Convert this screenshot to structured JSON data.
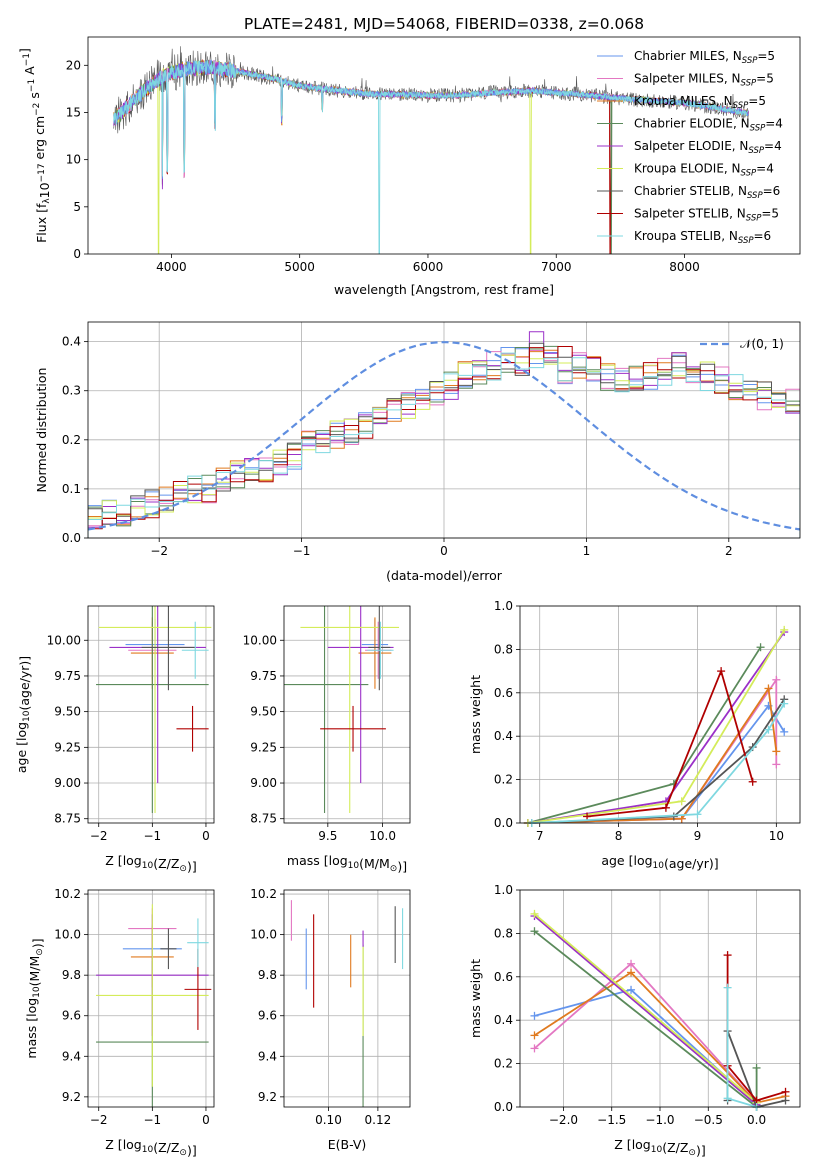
{
  "figure": {
    "title": "PLATE=2481, MJD=54068, FIBERID=0338, z=0.068"
  },
  "series": [
    {
      "key": "chabrier_miles",
      "label": "Chabrier MILES, N_SSP=5",
      "label_main": "Chabrier MILES, N",
      "label_sub": "SSP",
      "label_tail": "=5",
      "color": "#6495ed"
    },
    {
      "key": "salpeter_miles",
      "label": "Salpeter MILES, N_SSP=5",
      "label_main": "Salpeter MILES, N",
      "label_sub": "SSP",
      "label_tail": "=5",
      "color": "#e377c2"
    },
    {
      "key": "kroupa_miles",
      "label": "Kroupa MILES, N_SSP=5",
      "label_main": "Kroupa MILES, N",
      "label_sub": "SSP",
      "label_tail": "=5",
      "color": "#e07a1f"
    },
    {
      "key": "chabrier_elodie",
      "label": "Chabrier ELODIE, N_SSP=4",
      "label_main": "Chabrier ELODIE, N",
      "label_sub": "SSP",
      "label_tail": "=4",
      "color": "#5b8a5b"
    },
    {
      "key": "salpeter_elodie",
      "label": "Salpeter ELODIE, N_SSP=4",
      "label_main": "Salpeter ELODIE, N",
      "label_sub": "SSP",
      "label_tail": "=4",
      "color": "#9b30c8"
    },
    {
      "key": "kroupa_elodie",
      "label": "Kroupa ELODIE, N_SSP=4",
      "label_main": "Kroupa ELODIE, N",
      "label_sub": "SSP",
      "label_tail": "=4",
      "color": "#d4ec5a"
    },
    {
      "key": "chabrier_stelib",
      "label": "Chabrier STELIB, N_SSP=6",
      "label_main": "Chabrier STELIB, N",
      "label_sub": "SSP",
      "label_tail": "=6",
      "color": "#555555"
    },
    {
      "key": "salpeter_stelib",
      "label": "Salpeter STELIB, N_SSP=5",
      "label_main": "Salpeter STELIB, N",
      "label_sub": "SSP",
      "label_tail": "=5",
      "color": "#b00000"
    },
    {
      "key": "kroupa_stelib",
      "label": "Kroupa STELIB, N_SSP=6",
      "label_main": "Kroupa STELIB, N",
      "label_sub": "SSP",
      "label_tail": "=6",
      "color": "#7fd8e0"
    }
  ],
  "chart_data": [
    {
      "id": "spectrum",
      "type": "line",
      "xlabel": "wavelength [Angstrom, rest frame]",
      "ylabel": "Flux [f_λ 10^-17 erg cm^-2 s^-1 A^-1]",
      "xlim": [
        3350,
        8900
      ],
      "ylim": [
        0,
        23
      ],
      "xticks": [
        4000,
        5000,
        6000,
        7000,
        8000
      ],
      "yticks": [
        0,
        5,
        10,
        15,
        20
      ],
      "legend": "upper right",
      "continuum_x": [
        3550,
        3800,
        3950,
        4100,
        4300,
        4500,
        4800,
        5000,
        5200,
        5500,
        5800,
        6000,
        6200,
        6500,
        6800,
        7000,
        7200,
        7500,
        7800,
        8000,
        8200,
        8500
      ],
      "continuum_y": [
        14.2,
        17.5,
        19.0,
        19.6,
        19.8,
        19.4,
        18.6,
        17.8,
        17.5,
        17.0,
        16.9,
        16.8,
        16.8,
        17.1,
        17.3,
        17.1,
        16.9,
        16.5,
        16.2,
        16.0,
        15.6,
        14.9
      ],
      "drops": [
        [
          3900,
          0
        ],
        [
          3930,
          6.8
        ],
        [
          3968,
          8.5
        ],
        [
          4100,
          8.0
        ],
        [
          4340,
          13.0
        ],
        [
          4861,
          13.5
        ],
        [
          5175,
          15.0
        ],
        [
          5620,
          0
        ],
        [
          6800,
          0
        ],
        [
          7420,
          0
        ],
        [
          7430,
          0
        ]
      ]
    },
    {
      "id": "residuals",
      "type": "histogram",
      "xlabel": "(data-model)/error",
      "ylabel": "Normed distribution",
      "xlim": [
        -2.5,
        2.5
      ],
      "ylim": [
        0,
        0.44
      ],
      "xticks": [
        -2,
        -1,
        0,
        1,
        2
      ],
      "yticks": [
        0.0,
        0.1,
        0.2,
        0.3,
        0.4
      ],
      "legend": "upper right",
      "gaussian_label": "𝒩(0, 1)",
      "gaussian_color": "#5f8ee0",
      "bin_width": 0.1,
      "bin_start": -2.5,
      "base_profile": [
        0.04,
        0.05,
        0.05,
        0.06,
        0.07,
        0.08,
        0.09,
        0.1,
        0.1,
        0.12,
        0.13,
        0.14,
        0.14,
        0.15,
        0.17,
        0.19,
        0.2,
        0.21,
        0.22,
        0.23,
        0.25,
        0.26,
        0.27,
        0.28,
        0.3,
        0.31,
        0.33,
        0.34,
        0.35,
        0.36,
        0.36,
        0.37,
        0.37,
        0.34,
        0.35,
        0.34,
        0.33,
        0.32,
        0.32,
        0.33,
        0.34,
        0.35,
        0.34,
        0.33,
        0.32,
        0.31,
        0.3,
        0.29,
        0.28,
        0.28,
        0.27,
        0.26,
        0.24,
        0.23,
        0.22,
        0.21,
        0.2,
        0.19,
        0.18,
        0.17,
        0.17,
        0.16,
        0.15,
        0.14,
        0.13,
        0.12,
        0.11,
        0.1,
        0.09,
        0.08,
        0.07,
        0.06,
        0.06,
        0.05,
        0.05,
        0.05,
        0.04,
        0.04,
        0.04,
        0.04,
        0.03,
        0.03,
        0.03,
        0.03,
        0.03,
        0.03,
        0.02,
        0.02,
        0.02,
        0.02,
        0.02,
        0.02,
        0.02,
        0.02,
        0.02,
        0.02,
        0.02,
        0.02,
        0.02,
        0.02
      ]
    },
    {
      "id": "age_vs_Z",
      "type": "scatter",
      "xlabel": "Z [log10(Z/Z☉)]",
      "ylabel": "age [log10(age/yr)]",
      "xlim": [
        -2.2,
        0.15
      ],
      "ylim": [
        8.72,
        10.24
      ],
      "xticks": [
        -2,
        -1,
        0
      ],
      "yticks": [
        8.75,
        9.0,
        9.25,
        9.5,
        9.75,
        10.0
      ],
      "points": [
        {
          "s": 0,
          "x": -0.95,
          "y": 9.97,
          "xerr": 0.55,
          "yerr": 0.18
        },
        {
          "s": 1,
          "x": -1.0,
          "y": 9.93,
          "xerr": 0.45,
          "yerr": 0.2
        },
        {
          "s": 2,
          "x": -1.0,
          "y": 9.91,
          "xerr": 0.4,
          "yerr": 0.25
        },
        {
          "s": 3,
          "x": -1.0,
          "y": 9.69,
          "xerr": 1.05,
          "yerr": 0.9
        },
        {
          "s": 4,
          "x": -0.9,
          "y": 9.95,
          "xerr": 0.9,
          "yerr": 0.95
        },
        {
          "s": 5,
          "x": -0.95,
          "y": 10.09,
          "xerr": 1.05,
          "yerr": 1.3
        },
        {
          "s": 6,
          "x": -0.7,
          "y": 9.95,
          "xerr": 0.5,
          "yerr": 0.3
        },
        {
          "s": 7,
          "x": -0.25,
          "y": 9.38,
          "xerr": 0.3,
          "yerr": 0.16
        },
        {
          "s": 8,
          "x": -0.2,
          "y": 9.93,
          "xerr": 0.25,
          "yerr": 0.2
        }
      ]
    },
    {
      "id": "age_vs_mass",
      "type": "scatter",
      "xlabel": "mass [log10(M/M☉)]",
      "ylabel": "",
      "xlim": [
        9.1,
        10.25
      ],
      "ylim": [
        8.72,
        10.24
      ],
      "xticks": [
        9.5,
        10.0
      ],
      "yticks": [
        8.75,
        9.0,
        9.25,
        9.5,
        9.75,
        10.0
      ],
      "points": [
        {
          "s": 0,
          "x": 9.93,
          "y": 9.97,
          "xerr": 0.12,
          "yerr": 0.18
        },
        {
          "s": 1,
          "x": 9.96,
          "y": 9.93,
          "xerr": 0.12,
          "yerr": 0.2
        },
        {
          "s": 2,
          "x": 9.93,
          "y": 9.91,
          "xerr": 0.15,
          "yerr": 0.25
        },
        {
          "s": 3,
          "x": 9.47,
          "y": 9.69,
          "xerr": 0.4,
          "yerr": 0.9
        },
        {
          "s": 4,
          "x": 9.8,
          "y": 9.95,
          "xerr": 0.3,
          "yerr": 0.95
        },
        {
          "s": 5,
          "x": 9.7,
          "y": 10.09,
          "xerr": 0.45,
          "yerr": 1.3
        },
        {
          "s": 6,
          "x": 9.97,
          "y": 9.95,
          "xerr": 0.1,
          "yerr": 0.3
        },
        {
          "s": 7,
          "x": 9.73,
          "y": 9.38,
          "xerr": 0.3,
          "yerr": 0.16
        },
        {
          "s": 8,
          "x": 9.98,
          "y": 9.93,
          "xerr": 0.12,
          "yerr": 0.2
        }
      ]
    },
    {
      "id": "weight_vs_age",
      "type": "line",
      "xlabel": "age [log10(age/yr)]",
      "ylabel": "mass weight",
      "xlim": [
        6.75,
        10.3
      ],
      "ylim": [
        0,
        1
      ],
      "xticks": [
        7,
        8,
        9,
        10
      ],
      "yticks": [
        0.0,
        0.2,
        0.4,
        0.6,
        0.8,
        1.0
      ],
      "series_points": [
        {
          "s": 0,
          "x": [
            6.85,
            8.8,
            9.9,
            10.1
          ],
          "y": [
            0.0,
            0.02,
            0.54,
            0.42
          ]
        },
        {
          "s": 1,
          "x": [
            6.85,
            8.8,
            10.0,
            10.0
          ],
          "y": [
            0.0,
            0.02,
            0.66,
            0.27
          ]
        },
        {
          "s": 2,
          "x": [
            6.85,
            8.8,
            9.9,
            10.0
          ],
          "y": [
            0.0,
            0.02,
            0.62,
            0.33
          ]
        },
        {
          "s": 3,
          "x": [
            6.85,
            8.7,
            9.8
          ],
          "y": [
            0.0,
            0.18,
            0.81
          ]
        },
        {
          "s": 4,
          "x": [
            6.85,
            8.6,
            10.1
          ],
          "y": [
            0.0,
            0.1,
            0.88
          ]
        },
        {
          "s": 5,
          "x": [
            6.85,
            8.8,
            10.1
          ],
          "y": [
            0.0,
            0.1,
            0.89
          ]
        },
        {
          "s": 6,
          "x": [
            6.9,
            8.7,
            9.7,
            10.1
          ],
          "y": [
            0.0,
            0.03,
            0.35,
            0.57
          ]
        },
        {
          "s": 7,
          "x": [
            7.6,
            8.6,
            9.3,
            9.7
          ],
          "y": [
            0.03,
            0.07,
            0.7,
            0.19
          ]
        },
        {
          "s": 8,
          "x": [
            6.9,
            9.0,
            9.9,
            10.1
          ],
          "y": [
            0.0,
            0.04,
            0.43,
            0.55
          ]
        }
      ]
    },
    {
      "id": "mass_vs_Z",
      "type": "scatter",
      "xlabel": "Z [log10(Z/Z☉)]",
      "ylabel": "mass [log10(M/M☉)]",
      "xlim": [
        -2.2,
        0.15
      ],
      "ylim": [
        9.15,
        10.22
      ],
      "xticks": [
        -2,
        -1,
        0
      ],
      "yticks": [
        9.2,
        9.4,
        9.6,
        9.8,
        10.0,
        10.2
      ],
      "points": [
        {
          "s": 0,
          "x": -1.0,
          "y": 9.93,
          "xerr": 0.55,
          "yerr": 0.12
        },
        {
          "s": 1,
          "x": -1.0,
          "y": 10.03,
          "xerr": 0.45,
          "yerr": 0.1
        },
        {
          "s": 2,
          "x": -1.0,
          "y": 9.89,
          "xerr": 0.4,
          "yerr": 0.15
        },
        {
          "s": 3,
          "x": -1.0,
          "y": 9.47,
          "xerr": 1.05,
          "yerr": 0.4
        },
        {
          "s": 4,
          "x": -1.0,
          "y": 9.8,
          "xerr": 1.05,
          "yerr": 0.3
        },
        {
          "s": 5,
          "x": -1.0,
          "y": 9.7,
          "xerr": 1.05,
          "yerr": 0.45
        },
        {
          "s": 6,
          "x": -0.7,
          "y": 9.93,
          "xerr": 0.15,
          "yerr": 0.1
        },
        {
          "s": 7,
          "x": -0.15,
          "y": 9.73,
          "xerr": 0.25,
          "yerr": 0.2
        },
        {
          "s": 8,
          "x": -0.15,
          "y": 9.96,
          "xerr": 0.2,
          "yerr": 0.12
        }
      ]
    },
    {
      "id": "mass_vs_ebv",
      "type": "scatter",
      "xlabel": "E(B-V)",
      "ylabel": "",
      "xlim": [
        0.082,
        0.133
      ],
      "ylim": [
        9.15,
        10.22
      ],
      "xticks": [
        0.1,
        0.12
      ],
      "yticks": [
        9.2,
        9.4,
        9.6,
        9.8,
        10.0,
        10.2
      ],
      "points": [
        {
          "s": 0,
          "x": 0.091,
          "y": 9.88,
          "xerr": 0,
          "yerr": 0.15
        },
        {
          "s": 1,
          "x": 0.085,
          "y": 10.07,
          "xerr": 0,
          "yerr": 0.1
        },
        {
          "s": 2,
          "x": 0.109,
          "y": 9.87,
          "xerr": 0,
          "yerr": 0.13
        },
        {
          "s": 3,
          "x": 0.114,
          "y": 9.55,
          "xerr": 0,
          "yerr": 0.4
        },
        {
          "s": 4,
          "x": 0.114,
          "y": 9.98,
          "xerr": 0,
          "yerr": 0.04
        },
        {
          "s": 5,
          "x": 0.114,
          "y": 9.72,
          "xerr": 0,
          "yerr": 0.22
        },
        {
          "s": 6,
          "x": 0.127,
          "y": 10.0,
          "xerr": 0,
          "yerr": 0.14
        },
        {
          "s": 7,
          "x": 0.094,
          "y": 9.87,
          "xerr": 0,
          "yerr": 0.23
        },
        {
          "s": 8,
          "x": 0.13,
          "y": 9.98,
          "xerr": 0,
          "yerr": 0.15
        }
      ]
    },
    {
      "id": "weight_vs_Z",
      "type": "line",
      "xlabel": "Z [log10(Z/Z☉)]",
      "ylabel": "mass weight",
      "xlim": [
        -2.45,
        0.45
      ],
      "ylim": [
        0,
        1
      ],
      "xticks": [
        -2.0,
        -1.5,
        -1.0,
        -0.5,
        0.0
      ],
      "yticks": [
        0.0,
        0.2,
        0.4,
        0.6,
        0.8,
        1.0
      ],
      "series_points": [
        {
          "s": 0,
          "x": [
            -2.3,
            -1.3,
            0.0
          ],
          "y": [
            0.42,
            0.54,
            0.01
          ]
        },
        {
          "s": 1,
          "x": [
            -2.3,
            -1.3,
            0.0
          ],
          "y": [
            0.27,
            0.66,
            0.02
          ]
        },
        {
          "s": 2,
          "x": [
            -2.3,
            -1.3,
            0.0,
            0.3
          ],
          "y": [
            0.33,
            0.62,
            0.02,
            0.05
          ]
        },
        {
          "s": 3,
          "x": [
            -2.3,
            0.0,
            0.0
          ],
          "y": [
            0.81,
            0.0,
            0.18
          ]
        },
        {
          "s": 4,
          "x": [
            -2.3,
            0.0
          ],
          "y": [
            0.88,
            0.01
          ]
        },
        {
          "s": 5,
          "x": [
            -2.3,
            0.0
          ],
          "y": [
            0.89,
            0.02
          ]
        },
        {
          "s": 6,
          "x": [
            -0.3,
            -0.3,
            0.0,
            0.3
          ],
          "y": [
            0.03,
            0.35,
            0.0,
            0.03
          ]
        },
        {
          "s": 7,
          "x": [
            -0.3,
            -0.3,
            0.0,
            0.3
          ],
          "y": [
            0.7,
            0.19,
            0.03,
            0.07
          ]
        },
        {
          "s": 8,
          "x": [
            -0.3,
            -0.3,
            0.0
          ],
          "y": [
            0.55,
            0.04,
            0.0
          ]
        }
      ]
    }
  ]
}
